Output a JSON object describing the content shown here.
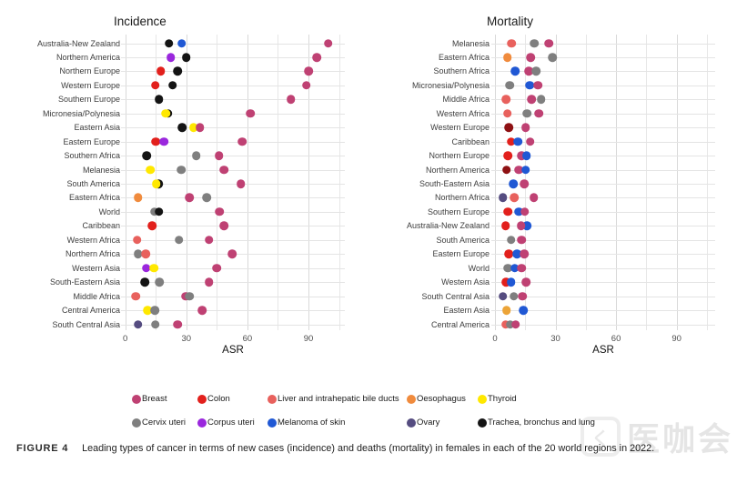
{
  "figure": {
    "caption_tag": "FIGURE 4",
    "caption_text": "Leading types of cancer in terms of new cases (incidence) and deaths (mortality) in females in each of the 20 world regions in 2022.",
    "watermark": "医咖会",
    "watermark_logo_glyph": "く"
  },
  "palette": {
    "breast": "#bf4173",
    "colon": "#e2201c",
    "liver": "#e8615d",
    "oesophagus": "#f08b3d",
    "thyroid": "#ffe800",
    "cervix": "#7f7f7f",
    "corpus": "#9a27dd",
    "melanoma": "#2058d4",
    "ovary": "#554c80",
    "lung": "#141414",
    "darkred": "#8e1113",
    "amber": "#eca438"
  },
  "legend": {
    "rows": [
      [
        {
          "key": "breast",
          "label": "Breast"
        },
        {
          "key": "colon",
          "label": "Colon"
        },
        {
          "key": "liver",
          "label": "Liver and intrahepatic bile ducts"
        },
        {
          "key": "oesophagus",
          "label": "Oesophagus"
        },
        {
          "key": "thyroid",
          "label": "Thyroid"
        }
      ],
      [
        {
          "key": "cervix",
          "label": "Cervix uteri"
        },
        {
          "key": "corpus",
          "label": "Corpus uteri"
        },
        {
          "key": "melanoma",
          "label": "Melanoma of skin"
        },
        {
          "key": "ovary",
          "label": "Ovary"
        },
        {
          "key": "lung",
          "label": "Trachea, bronchus and lung"
        }
      ]
    ]
  },
  "chart_data": {
    "type": "scatter",
    "xlabel": "ASR",
    "ticks": [
      0,
      30,
      60,
      90
    ],
    "xlim": [
      0,
      105
    ],
    "grid": true,
    "panels": [
      {
        "title": "Incidence",
        "rows": [
          {
            "region": "Australia-New Zealand",
            "dots": [
              [
                "lung",
                21.4
              ],
              [
                "melanoma",
                27.8
              ],
              [
                "breast",
                99.7
              ]
            ]
          },
          {
            "region": "Northern America",
            "dots": [
              [
                "corpus",
                22.3
              ],
              [
                "lung",
                29.9
              ],
              [
                "breast",
                94.2
              ]
            ]
          },
          {
            "region": "Northern Europe",
            "dots": [
              [
                "colon",
                17.5
              ],
              [
                "lung",
                25.6
              ],
              [
                "breast",
                90.0
              ]
            ]
          },
          {
            "region": "Western Europe",
            "dots": [
              [
                "colon",
                14.7
              ],
              [
                "lung",
                23.3
              ],
              [
                "breast",
                89.0
              ]
            ]
          },
          {
            "region": "Southern Europe",
            "dots": [
              [
                "lung",
                16.5
              ],
              [
                "breast",
                81.3
              ]
            ]
          },
          {
            "region": "Micronesia/Polynesia",
            "dots": [
              [
                "lung",
                21.0
              ],
              [
                "thyroid",
                19.8
              ],
              [
                "breast",
                61.6
              ]
            ]
          },
          {
            "region": "Eastern Asia",
            "dots": [
              [
                "lung",
                27.9
              ],
              [
                "thyroid",
                33.6
              ],
              [
                "breast",
                36.7
              ]
            ]
          },
          {
            "region": "Eastern Europe",
            "dots": [
              [
                "colon",
                14.9
              ],
              [
                "corpus",
                19.0
              ],
              [
                "breast",
                57.4
              ]
            ]
          },
          {
            "region": "Southern Africa",
            "dots": [
              [
                "lung",
                10.4
              ],
              [
                "cervix",
                34.8
              ],
              [
                "breast",
                46.0
              ]
            ]
          },
          {
            "region": "Melanesia",
            "dots": [
              [
                "thyroid",
                12.2
              ],
              [
                "cervix",
                27.4
              ],
              [
                "breast",
                48.6
              ]
            ]
          },
          {
            "region": "South America",
            "dots": [
              [
                "lung",
                16.2
              ],
              [
                "thyroid",
                15.2
              ],
              [
                "breast",
                56.7
              ]
            ]
          },
          {
            "region": "Eastern Africa",
            "dots": [
              [
                "oesophagus",
                6.2
              ],
              [
                "breast",
                31.5
              ],
              [
                "cervix",
                40.0
              ]
            ]
          },
          {
            "region": "World",
            "dots": [
              [
                "cervix",
                14.3
              ],
              [
                "lung",
                16.5
              ],
              [
                "breast",
                46.4
              ]
            ]
          },
          {
            "region": "Caribbean",
            "dots": [
              [
                "colon",
                13.2
              ],
              [
                "breast",
                48.6
              ]
            ]
          },
          {
            "region": "Western Africa",
            "dots": [
              [
                "liver",
                5.8
              ],
              [
                "cervix",
                26.3
              ],
              [
                "breast",
                41.2
              ]
            ]
          },
          {
            "region": "Northern Africa",
            "dots": [
              [
                "cervix",
                6.3
              ],
              [
                "liver",
                10.0
              ],
              [
                "breast",
                52.4
              ]
            ]
          },
          {
            "region": "Western Asia",
            "dots": [
              [
                "corpus",
                10.3
              ],
              [
                "thyroid",
                14.1
              ],
              [
                "breast",
                44.9
              ]
            ]
          },
          {
            "region": "South-Eastern Asia",
            "dots": [
              [
                "lung",
                9.6
              ],
              [
                "cervix",
                16.7
              ],
              [
                "breast",
                41.2
              ]
            ]
          },
          {
            "region": "Middle Africa",
            "dots": [
              [
                "liver",
                5.2
              ],
              [
                "breast",
                29.6
              ],
              [
                "cervix",
                31.5
              ]
            ]
          },
          {
            "region": "Central America",
            "dots": [
              [
                "thyroid",
                11.0
              ],
              [
                "cervix",
                14.4
              ],
              [
                "breast",
                37.9
              ]
            ]
          },
          {
            "region": "South Central Asia",
            "dots": [
              [
                "ovary",
                6.2
              ],
              [
                "cervix",
                14.7
              ],
              [
                "breast",
                25.6
              ]
            ]
          }
        ]
      },
      {
        "title": "Mortality",
        "rows": [
          {
            "region": "Melanesia",
            "dots": [
              [
                "liver",
                8.3
              ],
              [
                "cervix",
                19.5
              ],
              [
                "breast",
                26.7
              ]
            ]
          },
          {
            "region": "Eastern Africa",
            "dots": [
              [
                "oesophagus",
                6.2
              ],
              [
                "breast",
                17.6
              ],
              [
                "cervix",
                28.6
              ]
            ]
          },
          {
            "region": "Southern Africa",
            "dots": [
              [
                "melanoma",
                10.0
              ],
              [
                "breast",
                16.7
              ],
              [
                "cervix",
                20.5
              ]
            ]
          },
          {
            "region": "Micronesia/Polynesia",
            "dots": [
              [
                "cervix",
                7.4
              ],
              [
                "melanoma",
                17.2
              ],
              [
                "breast",
                21.3
              ]
            ]
          },
          {
            "region": "Middle Africa",
            "dots": [
              [
                "liver",
                5.4
              ],
              [
                "breast",
                18.1
              ],
              [
                "cervix",
                22.8
              ]
            ]
          },
          {
            "region": "Western Africa",
            "dots": [
              [
                "liver",
                6.2
              ],
              [
                "cervix",
                16.0
              ],
              [
                "breast",
                21.7
              ]
            ]
          },
          {
            "region": "Western Europe",
            "dots": [
              [
                "darkred",
                6.8
              ],
              [
                "breast",
                15.2
              ]
            ]
          },
          {
            "region": "Caribbean",
            "dots": [
              [
                "colon",
                8.0
              ],
              [
                "melanoma",
                11.3
              ],
              [
                "breast",
                17.5
              ]
            ]
          },
          {
            "region": "Northern Europe",
            "dots": [
              [
                "colon",
                6.3
              ],
              [
                "breast",
                13.1
              ],
              [
                "melanoma",
                15.7
              ]
            ]
          },
          {
            "region": "Northern America",
            "dots": [
              [
                "darkred",
                5.7
              ],
              [
                "breast",
                11.9
              ],
              [
                "melanoma",
                15.2
              ]
            ]
          },
          {
            "region": "South-Eastern Asia",
            "dots": [
              [
                "melanoma",
                9.0
              ],
              [
                "breast",
                14.6
              ]
            ]
          },
          {
            "region": "Northern Africa",
            "dots": [
              [
                "ovary",
                3.9
              ],
              [
                "liver",
                9.6
              ],
              [
                "breast",
                19.3
              ]
            ]
          },
          {
            "region": "Southern Europe",
            "dots": [
              [
                "colon",
                6.5
              ],
              [
                "melanoma",
                11.8
              ],
              [
                "breast",
                14.8
              ]
            ]
          },
          {
            "region": "Australia-New Zealand",
            "dots": [
              [
                "colon",
                5.3
              ],
              [
                "melanoma",
                15.8
              ],
              [
                "breast",
                13.0
              ]
            ]
          },
          {
            "region": "South America",
            "dots": [
              [
                "cervix",
                8.0
              ],
              [
                "breast",
                13.3
              ]
            ]
          },
          {
            "region": "Eastern Europe",
            "dots": [
              [
                "colon",
                6.8
              ],
              [
                "melanoma",
                10.9
              ],
              [
                "breast",
                14.5
              ]
            ]
          },
          {
            "region": "World",
            "dots": [
              [
                "cervix",
                6.5
              ],
              [
                "melanoma",
                9.8
              ],
              [
                "breast",
                13.3
              ]
            ]
          },
          {
            "region": "Western Asia",
            "dots": [
              [
                "colon",
                5.4
              ],
              [
                "melanoma",
                8.0
              ],
              [
                "breast",
                15.5
              ]
            ]
          },
          {
            "region": "South Central Asia",
            "dots": [
              [
                "ovary",
                3.9
              ],
              [
                "cervix",
                9.4
              ],
              [
                "breast",
                13.7
              ]
            ]
          },
          {
            "region": "Eastern Asia",
            "dots": [
              [
                "amber",
                5.7
              ],
              [
                "melanoma",
                14.0
              ]
            ]
          },
          {
            "region": "Central America",
            "dots": [
              [
                "liver",
                5.3
              ],
              [
                "cervix",
                7.5
              ],
              [
                "breast",
                10.3
              ]
            ]
          }
        ]
      }
    ]
  }
}
